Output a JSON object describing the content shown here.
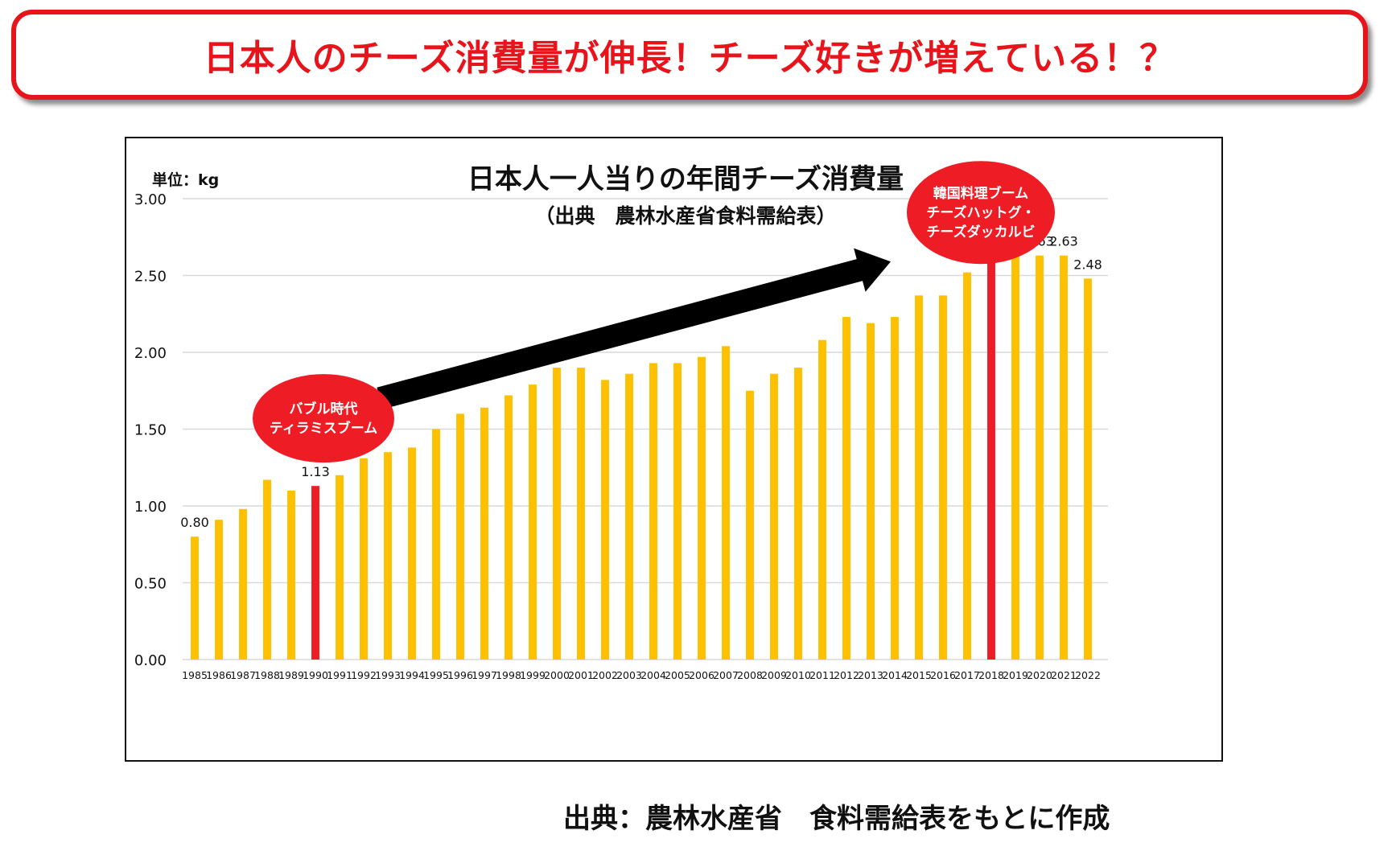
{
  "headline": "日本人のチーズ消費量が伸長！チーズ好きが増えている！？",
  "source_note": "出典：農林水産省　食料需給表をもとに作成",
  "colors": {
    "accent_red": "#e8141b",
    "bar_default": "#ffc000",
    "bar_highlight": "#ee1c25",
    "arrow": "#000000",
    "grid": "#d9d9d9"
  },
  "chart_data": {
    "type": "bar",
    "title": "日本人一人当りの年間チーズ消費量",
    "subtitle": "（出典　農林水産省食料需給表）",
    "unit_label": "単位：kg",
    "ylim": [
      0,
      3
    ],
    "yticks": [
      "0.00",
      "0.50",
      "1.00",
      "1.50",
      "2.00",
      "2.50",
      "3.00"
    ],
    "grid": true,
    "categories": [
      "1985",
      "1986",
      "1987",
      "1988",
      "1989",
      "1990",
      "1991",
      "1992",
      "1993",
      "1994",
      "1995",
      "1996",
      "1997",
      "1998",
      "1999",
      "2000",
      "2001",
      "2002",
      "2003",
      "2004",
      "2005",
      "2006",
      "2007",
      "2008",
      "2009",
      "2010",
      "2011",
      "2012",
      "2013",
      "2014",
      "2015",
      "2016",
      "2017",
      "2018",
      "2019",
      "2020",
      "2021",
      "2022"
    ],
    "values": [
      0.8,
      0.91,
      0.98,
      1.17,
      1.1,
      1.13,
      1.2,
      1.31,
      1.35,
      1.38,
      1.5,
      1.6,
      1.64,
      1.72,
      1.79,
      1.9,
      1.9,
      1.82,
      1.86,
      1.93,
      1.93,
      1.97,
      2.04,
      1.75,
      1.86,
      1.9,
      2.08,
      2.23,
      2.19,
      2.23,
      2.37,
      2.37,
      2.52,
      2.63,
      2.66,
      2.63,
      2.63,
      2.48
    ],
    "highlighted": [
      "1990",
      "2018"
    ],
    "data_labels": [
      {
        "category": "1985",
        "text": "0.80"
      },
      {
        "category": "1990",
        "text": "1.13"
      },
      {
        "category": "2018",
        "text": "2.63"
      },
      {
        "category": "2019",
        "text": "2.66"
      },
      {
        "category": "2020",
        "text": "2.63"
      },
      {
        "category": "2021",
        "text": "2.63"
      },
      {
        "category": "2022",
        "text": "2.48"
      }
    ],
    "annotations": [
      {
        "category": "1990",
        "lines": [
          "バブル時代",
          "ティラミスブーム"
        ]
      },
      {
        "category": "2018",
        "lines": [
          "韓国料理ブーム",
          "チーズハットグ・",
          "チーズダッカルビ"
        ]
      }
    ]
  }
}
